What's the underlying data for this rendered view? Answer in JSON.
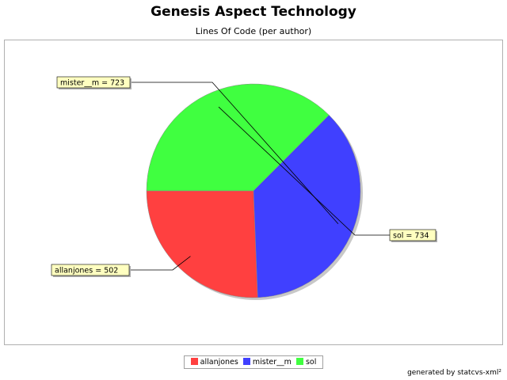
{
  "chart_data": {
    "type": "pie",
    "title": "Genesis Aspect Technology",
    "subtitle": "Lines Of Code (per author)",
    "slices": [
      {
        "name": "allanjones",
        "value": 502,
        "label": "allanjones = 502",
        "color": "#ff4040"
      },
      {
        "name": "mister__m",
        "value": 723,
        "label": "mister__m = 723",
        "color": "#4040ff"
      },
      {
        "name": "sol",
        "value": 734,
        "label": "sol = 734",
        "color": "#40ff40"
      }
    ],
    "legend_position": "bottom"
  },
  "footer": "generated by statcvs-xml²"
}
